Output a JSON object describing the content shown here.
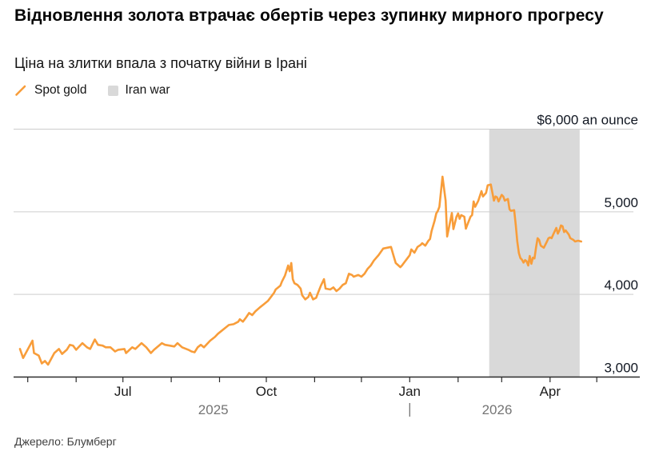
{
  "footer": {
    "source": "Джерело: Блумберг"
  },
  "chart_data": {
    "type": "line",
    "title": "Відновлення золота втрачає обертів через зупинку мирного прогресу",
    "subtitle": "Ціна на злитки впала з початку війни в Ірані",
    "colors": {
      "line": "#f89d3a",
      "band": "#d9d9d9",
      "grid": "#cdcdcd",
      "axis": "#2b2b2b"
    },
    "x_axis": {
      "epoch_date": "2025-04-26",
      "unit": "days since epoch",
      "month_ticks": [
        5,
        36,
        66,
        97,
        128,
        158,
        189,
        219,
        250,
        281,
        309,
        340,
        370
      ],
      "labeled_ticks": [
        {
          "day": 66,
          "label": "Jul"
        },
        {
          "day": 158,
          "label": "Oct"
        },
        {
          "day": 250,
          "label": "Jan"
        },
        {
          "day": 340,
          "label": "Apr"
        }
      ],
      "year_labels": [
        {
          "day": 124,
          "label": "2025"
        },
        {
          "day": 306,
          "label": "2026"
        }
      ],
      "year_separator_day": 250
    },
    "y_axis": {
      "min": 3000,
      "max": 6000,
      "ticks": [
        {
          "value": 6000,
          "label": "$6,000 an ounce"
        },
        {
          "value": 5000,
          "label": "5,000"
        },
        {
          "value": 4000,
          "label": "4,000"
        },
        {
          "value": 3000,
          "label": "3,000"
        }
      ]
    },
    "band": {
      "label": "Iran war",
      "start_day": 301,
      "end_day": 359,
      "color": "#d9d9d9"
    },
    "series": [
      {
        "name": "Spot gold",
        "color": "#f89d3a",
        "points": [
          [
            0,
            3340
          ],
          [
            2,
            3230
          ],
          [
            4,
            3300
          ],
          [
            8,
            3440
          ],
          [
            9,
            3290
          ],
          [
            12,
            3260
          ],
          [
            14,
            3165
          ],
          [
            16,
            3195
          ],
          [
            18,
            3150
          ],
          [
            22,
            3290
          ],
          [
            25,
            3340
          ],
          [
            27,
            3280
          ],
          [
            30,
            3330
          ],
          [
            32,
            3390
          ],
          [
            34,
            3380
          ],
          [
            36,
            3330
          ],
          [
            40,
            3410
          ],
          [
            43,
            3360
          ],
          [
            45,
            3340
          ],
          [
            48,
            3455
          ],
          [
            50,
            3390
          ],
          [
            53,
            3380
          ],
          [
            55,
            3360
          ],
          [
            58,
            3360
          ],
          [
            61,
            3310
          ],
          [
            63,
            3330
          ],
          [
            67,
            3340
          ],
          [
            68,
            3290
          ],
          [
            72,
            3360
          ],
          [
            74,
            3340
          ],
          [
            78,
            3410
          ],
          [
            81,
            3360
          ],
          [
            84,
            3290
          ],
          [
            86,
            3330
          ],
          [
            91,
            3410
          ],
          [
            93,
            3390
          ],
          [
            96,
            3380
          ],
          [
            99,
            3370
          ],
          [
            101,
            3410
          ],
          [
            104,
            3360
          ],
          [
            108,
            3330
          ],
          [
            110,
            3310
          ],
          [
            112,
            3300
          ],
          [
            114,
            3360
          ],
          [
            116,
            3390
          ],
          [
            118,
            3360
          ],
          [
            122,
            3440
          ],
          [
            125,
            3485
          ],
          [
            127,
            3525
          ],
          [
            129,
            3555
          ],
          [
            132,
            3600
          ],
          [
            134,
            3630
          ],
          [
            137,
            3640
          ],
          [
            140,
            3670
          ],
          [
            141,
            3700
          ],
          [
            143,
            3670
          ],
          [
            145,
            3720
          ],
          [
            147,
            3775
          ],
          [
            149,
            3750
          ],
          [
            151,
            3795
          ],
          [
            154,
            3845
          ],
          [
            156,
            3875
          ],
          [
            159,
            3920
          ],
          [
            161,
            3970
          ],
          [
            163,
            4020
          ],
          [
            164,
            4060
          ],
          [
            167,
            4105
          ],
          [
            168,
            4155
          ],
          [
            170,
            4230
          ],
          [
            172,
            4350
          ],
          [
            173,
            4280
          ],
          [
            174,
            4380
          ],
          [
            175,
            4185
          ],
          [
            176,
            4135
          ],
          [
            178,
            4115
          ],
          [
            180,
            4070
          ],
          [
            181,
            3990
          ],
          [
            183,
            3940
          ],
          [
            185,
            3970
          ],
          [
            186,
            4020
          ],
          [
            188,
            3940
          ],
          [
            190,
            3960
          ],
          [
            191,
            4010
          ],
          [
            193,
            4105
          ],
          [
            195,
            4185
          ],
          [
            196,
            4070
          ],
          [
            199,
            4060
          ],
          [
            201,
            4085
          ],
          [
            203,
            4040
          ],
          [
            205,
            4070
          ],
          [
            207,
            4115
          ],
          [
            209,
            4135
          ],
          [
            211,
            4250
          ],
          [
            213,
            4235
          ],
          [
            214,
            4215
          ],
          [
            217,
            4235
          ],
          [
            219,
            4215
          ],
          [
            221,
            4250
          ],
          [
            223,
            4310
          ],
          [
            225,
            4350
          ],
          [
            227,
            4410
          ],
          [
            230,
            4475
          ],
          [
            233,
            4555
          ],
          [
            238,
            4575
          ],
          [
            240,
            4445
          ],
          [
            241,
            4380
          ],
          [
            244,
            4330
          ],
          [
            245,
            4350
          ],
          [
            248,
            4425
          ],
          [
            250,
            4475
          ],
          [
            251,
            4545
          ],
          [
            253,
            4505
          ],
          [
            255,
            4575
          ],
          [
            257,
            4600
          ],
          [
            258,
            4620
          ],
          [
            260,
            4590
          ],
          [
            262,
            4650
          ],
          [
            263,
            4670
          ],
          [
            264,
            4765
          ],
          [
            266,
            4895
          ],
          [
            267,
            4980
          ],
          [
            268,
            5010
          ],
          [
            269,
            5060
          ],
          [
            271,
            5425
          ],
          [
            273,
            5135
          ],
          [
            274,
            4700
          ],
          [
            275,
            4795
          ],
          [
            277,
            4985
          ],
          [
            278,
            4790
          ],
          [
            280,
            4940
          ],
          [
            281,
            4980
          ],
          [
            282,
            4915
          ],
          [
            283,
            4960
          ],
          [
            285,
            4940
          ],
          [
            286,
            4795
          ],
          [
            287,
            4845
          ],
          [
            289,
            4940
          ],
          [
            290,
            4960
          ],
          [
            291,
            5125
          ],
          [
            292,
            5060
          ],
          [
            294,
            5135
          ],
          [
            296,
            5250
          ],
          [
            297,
            5185
          ],
          [
            299,
            5230
          ],
          [
            300,
            5320
          ],
          [
            302,
            5330
          ],
          [
            304,
            5135
          ],
          [
            305,
            5185
          ],
          [
            306,
            5175
          ],
          [
            307,
            5125
          ],
          [
            309,
            5205
          ],
          [
            310,
            5185
          ],
          [
            311,
            5135
          ],
          [
            313,
            5155
          ],
          [
            314,
            5030
          ],
          [
            315,
            5010
          ],
          [
            317,
            5020
          ],
          [
            318,
            4840
          ],
          [
            319,
            4640
          ],
          [
            320,
            4500
          ],
          [
            321,
            4440
          ],
          [
            322,
            4420
          ],
          [
            323,
            4385
          ],
          [
            324,
            4415
          ],
          [
            325,
            4400
          ],
          [
            326,
            4350
          ],
          [
            327,
            4465
          ],
          [
            328,
            4370
          ],
          [
            329,
            4445
          ],
          [
            330,
            4435
          ],
          [
            331,
            4565
          ],
          [
            332,
            4680
          ],
          [
            333,
            4660
          ],
          [
            334,
            4590
          ],
          [
            336,
            4565
          ],
          [
            338,
            4640
          ],
          [
            339,
            4680
          ],
          [
            340,
            4690
          ],
          [
            341,
            4680
          ],
          [
            342,
            4725
          ],
          [
            344,
            4805
          ],
          [
            345,
            4735
          ],
          [
            346,
            4775
          ],
          [
            347,
            4835
          ],
          [
            348,
            4825
          ],
          [
            349,
            4755
          ],
          [
            350,
            4775
          ],
          [
            352,
            4725
          ],
          [
            353,
            4680
          ],
          [
            355,
            4660
          ],
          [
            356,
            4640
          ],
          [
            358,
            4650
          ],
          [
            360,
            4640
          ]
        ]
      }
    ]
  }
}
